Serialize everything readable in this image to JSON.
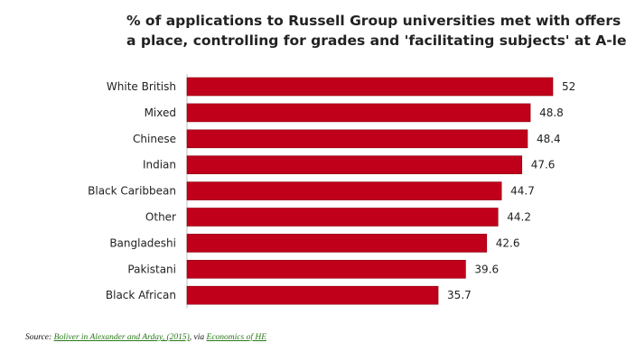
{
  "chart_data": {
    "type": "bar",
    "orientation": "horizontal",
    "title_lines": [
      "% of applications to Russell Group universities met with offers of",
      "a place, controlling for grades and 'facilitating subjects' at A-level"
    ],
    "categories": [
      "White British",
      "Mixed",
      "Chinese",
      "Indian",
      "Black Caribbean",
      "Other",
      "Bangladeshi",
      "Pakistani",
      "Black African"
    ],
    "values": [
      52,
      48.8,
      48.4,
      47.6,
      44.7,
      44.2,
      42.6,
      39.6,
      35.7
    ],
    "value_labels": [
      "52",
      "48.8",
      "48.4",
      "47.6",
      "44.7",
      "44.2",
      "42.6",
      "39.6",
      "35.7"
    ],
    "xlim": [
      0,
      52
    ],
    "grid": false,
    "legend": "none",
    "bar_color": "#c0001a",
    "bar_edge_color": "#8a0010"
  },
  "source": {
    "prefix": "Source: ",
    "link1": "Boliver in Alexander and Arday, (2015)",
    "middle": ", via ",
    "link2": "Economics of HE"
  }
}
